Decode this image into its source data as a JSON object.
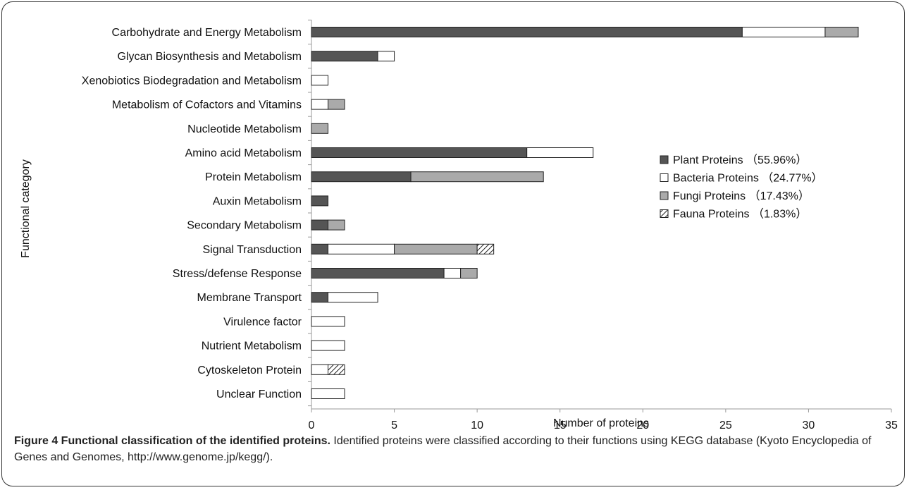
{
  "chart_data": {
    "type": "bar",
    "stacked": true,
    "orientation": "horizontal",
    "title": "",
    "xlabel": "Number of proteins",
    "ylabel": "Functional category",
    "xlim": [
      0,
      35
    ],
    "xticks": [
      0,
      5,
      10,
      15,
      20,
      25,
      30,
      35
    ],
    "legend_position": "right",
    "categories": [
      "Carbohydrate and Energy Metabolism",
      "Glycan Biosynthesis and Metabolism",
      "Xenobiotics Biodegradation and Metabolism",
      "Metabolism of Cofactors and Vitamins",
      "Nucleotide Metabolism",
      "Amino acid Metabolism",
      "Protein Metabolism",
      "Auxin Metabolism",
      "Secondary Metabolism",
      "Signal Transduction",
      "Stress/defense Response",
      "Membrane Transport",
      "Virulence factor",
      "Nutrient Metabolism",
      "Cytoskeleton Protein",
      "Unclear Function"
    ],
    "series": [
      {
        "name": "Plant Proteins （55.96%）",
        "fill": "#555555",
        "pattern": "solid",
        "values": [
          26,
          4,
          0,
          0,
          0,
          13,
          6,
          1,
          1,
          1,
          8,
          1,
          0,
          0,
          0,
          0
        ]
      },
      {
        "name": "Bacteria Proteins （24.77%）",
        "fill": "#ffffff",
        "pattern": "solid",
        "values": [
          5,
          1,
          1,
          1,
          0,
          4,
          0,
          0,
          0,
          4,
          1,
          3,
          2,
          2,
          1,
          2
        ]
      },
      {
        "name": "Fungi Proteins （17.43%）",
        "fill": "#aaaaaa",
        "pattern": "solid",
        "values": [
          2,
          0,
          0,
          1,
          1,
          0,
          8,
          0,
          1,
          5,
          1,
          0,
          0,
          0,
          0,
          0
        ]
      },
      {
        "name": "Fauna Proteins （1.83%）",
        "fill": "#ffffff",
        "pattern": "hatch",
        "values": [
          0,
          0,
          0,
          0,
          0,
          0,
          0,
          0,
          0,
          1,
          0,
          0,
          0,
          0,
          1,
          0
        ]
      }
    ]
  },
  "caption": {
    "label": "Figure 4 Functional classification of the identified proteins.",
    "text": " Identified proteins were classified according to their functions using KEGG database (Kyoto Encyclopedia of Genes and Genomes, http://www.genome.jp/kegg/)."
  }
}
